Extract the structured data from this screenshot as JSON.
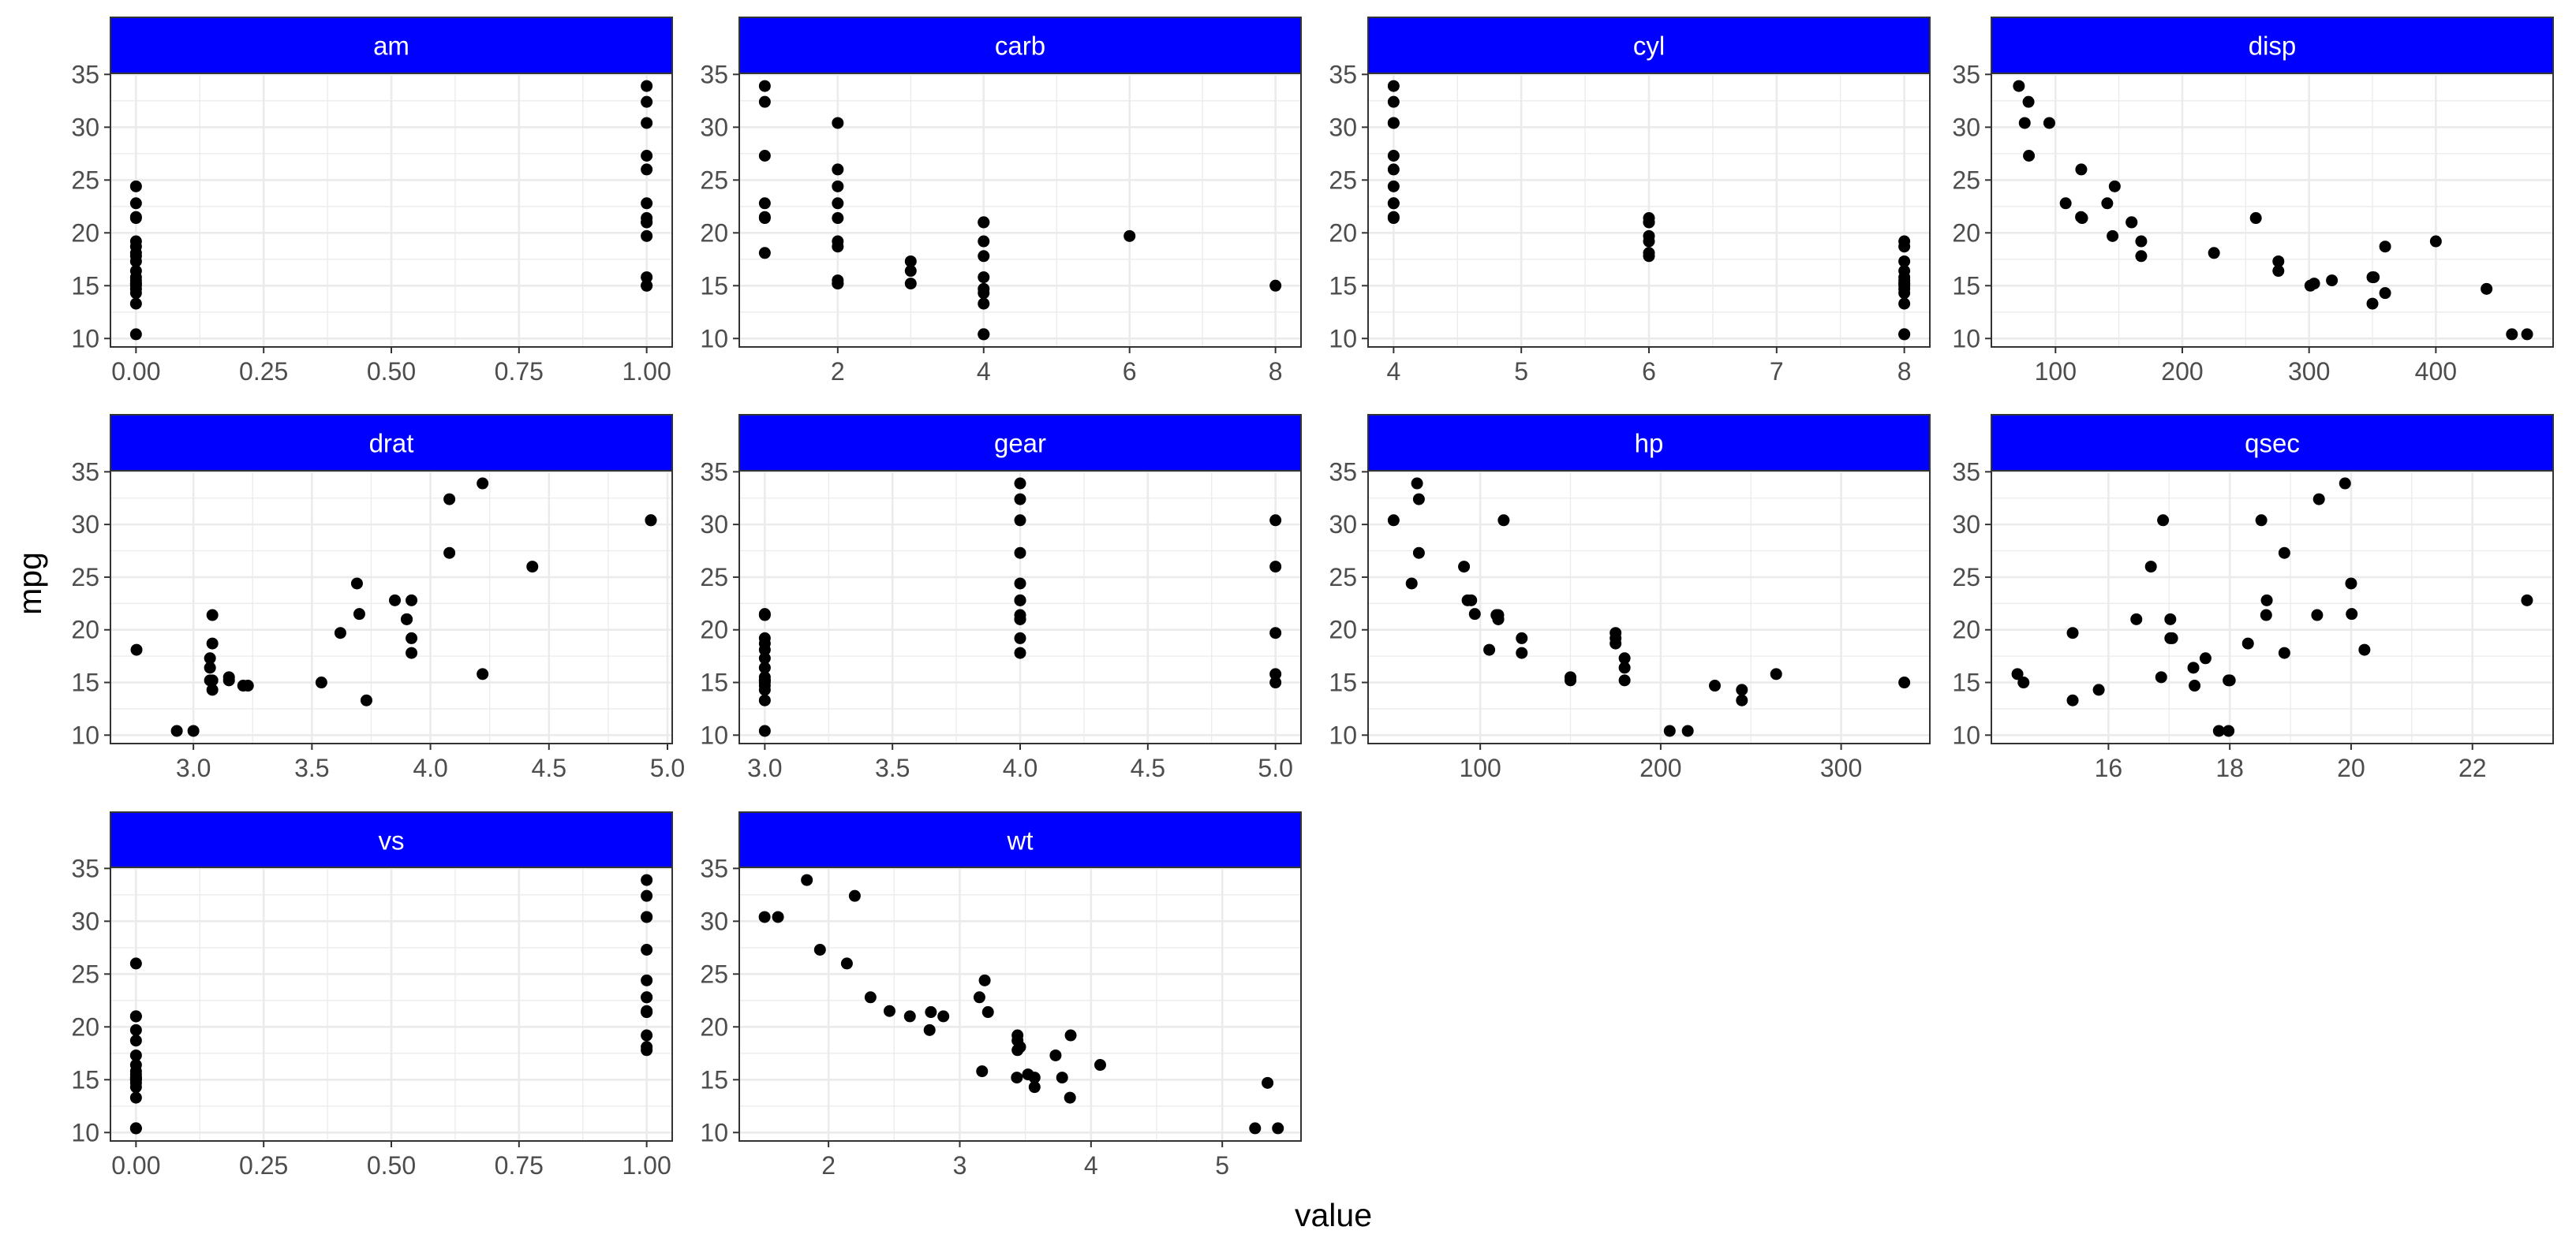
{
  "chart_data": {
    "type": "scatter",
    "xlabel": "value",
    "ylabel": "mpg",
    "colors": {
      "strip_fill": "#0000FF",
      "strip_text": "#FFFFFF",
      "points": "#000000",
      "grid": "#EBEBEB",
      "border": "#333333"
    },
    "facets": [
      {
        "name": "am",
        "xlim": [
          -0.05,
          1.05
        ],
        "xticks": [
          0,
          0.25,
          0.5,
          0.75,
          1
        ],
        "xtick_labels": [
          "0.00",
          "0.25",
          "0.50",
          "0.75",
          "1.00"
        ],
        "x": [
          0,
          0,
          0,
          0,
          0,
          0,
          0,
          0,
          0,
          0,
          0,
          0,
          0,
          0,
          0,
          0,
          0,
          0,
          0,
          1,
          1,
          1,
          1,
          1,
          1,
          1,
          1,
          1,
          1,
          1,
          1,
          1
        ],
        "y": [
          24.4,
          22.8,
          21.4,
          21.5,
          19.2,
          18.7,
          18.1,
          17.8,
          17.3,
          16.4,
          15.8,
          15.5,
          15.2,
          15.2,
          15.0,
          14.7,
          14.3,
          13.3,
          10.4,
          33.9,
          32.4,
          30.4,
          27.3,
          26.0,
          22.8,
          21.4,
          21.0,
          21.0,
          19.7,
          15.8,
          15.0,
          15.0
        ]
      },
      {
        "name": "carb",
        "xlim": [
          0.65,
          8.35
        ],
        "xticks": [
          2,
          4,
          6,
          8
        ],
        "xtick_labels": [
          "2",
          "4",
          "6",
          "8"
        ],
        "x": [
          1,
          1,
          1,
          1,
          1,
          1,
          1,
          2,
          2,
          2,
          2,
          2,
          2,
          2,
          2,
          2,
          2,
          3,
          3,
          3,
          4,
          4,
          4,
          4,
          4,
          4,
          4,
          4,
          4,
          4,
          6,
          8
        ],
        "y": [
          33.9,
          32.4,
          27.3,
          22.8,
          21.5,
          21.4,
          18.1,
          30.4,
          26.0,
          24.4,
          22.8,
          21.4,
          19.2,
          18.7,
          15.5,
          15.2,
          15.2,
          17.3,
          16.4,
          15.2,
          21.0,
          21.0,
          19.2,
          17.8,
          15.8,
          14.7,
          14.3,
          13.3,
          10.4,
          10.4,
          19.7,
          15.0
        ]
      },
      {
        "name": "cyl",
        "xlim": [
          3.8,
          8.2
        ],
        "xticks": [
          4,
          5,
          6,
          7,
          8
        ],
        "xtick_labels": [
          "4",
          "5",
          "6",
          "7",
          "8"
        ],
        "x": [
          4,
          4,
          4,
          4,
          4,
          4,
          4,
          4,
          4,
          4,
          4,
          6,
          6,
          6,
          6,
          6,
          6,
          6,
          8,
          8,
          8,
          8,
          8,
          8,
          8,
          8,
          8,
          8,
          8,
          8,
          8,
          8
        ],
        "y": [
          33.9,
          32.4,
          30.4,
          30.4,
          27.3,
          26.0,
          24.4,
          22.8,
          22.8,
          21.5,
          21.4,
          21.4,
          21.0,
          21.0,
          19.7,
          19.2,
          18.1,
          17.8,
          19.2,
          18.7,
          17.3,
          16.4,
          15.8,
          15.5,
          15.2,
          15.2,
          15.0,
          14.7,
          14.3,
          13.3,
          10.4,
          10.4
        ]
      },
      {
        "name": "disp",
        "xlim": [
          49.4,
          492.5
        ],
        "xticks": [
          100,
          200,
          300,
          400
        ],
        "xtick_labels": [
          "100",
          "200",
          "300",
          "400"
        ],
        "x": [
          71.1,
          78.7,
          75.7,
          95.1,
          79.0,
          120.3,
          146.7,
          108.0,
          140.8,
          120.1,
          121.0,
          160.0,
          160.0,
          167.6,
          225.0,
          258.0,
          167.6,
          275.8,
          360.0,
          275.8,
          304.0,
          318.0,
          301.0,
          350.0,
          400.0,
          351.0,
          440.0,
          360.0,
          350.0,
          460.0,
          472.0,
          145.0
        ],
        "y": [
          33.9,
          32.4,
          30.4,
          30.4,
          27.3,
          26.0,
          24.4,
          22.8,
          22.8,
          21.5,
          21.4,
          21.0,
          21.0,
          19.2,
          18.1,
          21.4,
          17.8,
          17.3,
          18.7,
          16.4,
          15.2,
          15.5,
          15.0,
          15.8,
          19.2,
          15.8,
          14.7,
          14.3,
          13.3,
          10.4,
          10.4,
          19.7
        ]
      },
      {
        "name": "drat",
        "xlim": [
          2.65,
          5.02
        ],
        "xticks": [
          3.0,
          3.5,
          4.0,
          4.5,
          5.0
        ],
        "xtick_labels": [
          "3.0",
          "3.5",
          "4.0",
          "4.5",
          "5.0"
        ],
        "x": [
          4.22,
          4.08,
          4.93,
          4.93,
          4.08,
          4.43,
          3.69,
          3.92,
          3.85,
          3.7,
          3.9,
          3.9,
          3.08,
          3.92,
          2.76,
          3.08,
          3.62,
          3.07,
          3.15,
          3.07,
          3.07,
          3.08,
          3.15,
          4.22,
          3.21,
          3.08,
          3.54,
          3.23,
          3.73,
          2.93,
          3.0,
          3.92
        ],
        "y": [
          33.9,
          32.4,
          30.4,
          30.4,
          27.3,
          26.0,
          24.4,
          22.8,
          22.8,
          21.5,
          21.0,
          21.0,
          21.4,
          19.2,
          18.1,
          18.7,
          19.7,
          17.3,
          15.5,
          16.4,
          15.2,
          15.2,
          15.2,
          15.8,
          14.7,
          14.3,
          15.0,
          14.7,
          13.3,
          10.4,
          10.4,
          17.8
        ]
      },
      {
        "name": "gear",
        "xlim": [
          2.9,
          5.1
        ],
        "xticks": [
          3.0,
          3.5,
          4.0,
          4.5,
          5.0
        ],
        "xtick_labels": [
          "3.0",
          "3.5",
          "4.0",
          "4.5",
          "5.0"
        ],
        "x": [
          3,
          3,
          3,
          3,
          3,
          3,
          3,
          3,
          3,
          3,
          3,
          3,
          3,
          3,
          3,
          4,
          4,
          4,
          4,
          4,
          4,
          4,
          4,
          4,
          4,
          4,
          4,
          5,
          5,
          5,
          5,
          5
        ],
        "y": [
          21.5,
          21.4,
          19.2,
          18.7,
          18.1,
          17.3,
          16.4,
          15.5,
          15.2,
          15.2,
          15.0,
          14.7,
          14.3,
          13.3,
          10.4,
          33.9,
          32.4,
          30.4,
          27.3,
          24.4,
          22.8,
          22.8,
          21.4,
          21.0,
          21.0,
          19.2,
          17.8,
          30.4,
          26.0,
          19.7,
          15.8,
          15.0
        ]
      },
      {
        "name": "hp",
        "xlim": [
          37.85,
          349.15
        ],
        "xticks": [
          100,
          200,
          300
        ],
        "xtick_labels": [
          "100",
          "200",
          "300"
        ],
        "x": [
          65,
          66,
          52,
          113,
          66,
          91,
          62,
          93,
          95,
          97,
          110,
          110,
          109,
          123,
          105,
          175,
          123,
          180,
          175,
          180,
          150,
          150,
          180,
          264,
          230,
          245,
          335,
          205,
          215,
          245,
          175,
          110
        ],
        "y": [
          33.9,
          32.4,
          30.4,
          30.4,
          27.3,
          26.0,
          24.4,
          22.8,
          22.8,
          21.5,
          21.0,
          21.0,
          21.4,
          19.2,
          18.1,
          18.7,
          17.8,
          17.3,
          19.7,
          16.4,
          15.5,
          15.2,
          15.2,
          15.8,
          14.7,
          14.3,
          15.0,
          10.4,
          10.4,
          13.3,
          19.2,
          21.4
        ]
      },
      {
        "name": "qsec",
        "xlim": [
          14.07,
          23.33
        ],
        "xticks": [
          16,
          18,
          20,
          22
        ],
        "xtick_labels": [
          "16",
          "18",
          "20",
          "22"
        ],
        "x": [
          19.9,
          19.47,
          18.52,
          16.9,
          18.9,
          16.7,
          20.0,
          18.61,
          22.9,
          20.01,
          16.46,
          17.02,
          19.44,
          18.3,
          20.22,
          17.02,
          18.9,
          17.6,
          15.41,
          17.4,
          17.98,
          16.87,
          18.0,
          14.5,
          17.42,
          15.84,
          14.6,
          17.82,
          17.98,
          15.41,
          17.05,
          18.6
        ],
        "y": [
          33.9,
          32.4,
          30.4,
          30.4,
          27.3,
          26.0,
          24.4,
          22.8,
          22.8,
          21.5,
          21.0,
          21.0,
          21.4,
          18.7,
          18.1,
          19.2,
          17.8,
          17.3,
          19.7,
          16.4,
          15.2,
          15.5,
          15.2,
          15.8,
          14.7,
          14.3,
          15.0,
          10.4,
          10.4,
          13.3,
          19.2,
          21.4
        ]
      },
      {
        "name": "vs",
        "xlim": [
          -0.05,
          1.05
        ],
        "xticks": [
          0,
          0.25,
          0.5,
          0.75,
          1
        ],
        "xtick_labels": [
          "0.00",
          "0.25",
          "0.50",
          "0.75",
          "1.00"
        ],
        "x": [
          0,
          0,
          0,
          0,
          0,
          0,
          0,
          0,
          0,
          0,
          0,
          0,
          0,
          0,
          0,
          0,
          0,
          0,
          1,
          1,
          1,
          1,
          1,
          1,
          1,
          1,
          1,
          1,
          1,
          1,
          1,
          1
        ],
        "y": [
          26.0,
          21.0,
          21.0,
          19.7,
          18.7,
          17.3,
          16.4,
          15.8,
          15.5,
          15.2,
          15.2,
          15.0,
          15.0,
          14.7,
          14.3,
          13.3,
          10.4,
          10.4,
          33.9,
          32.4,
          30.4,
          30.4,
          27.3,
          24.4,
          22.8,
          22.8,
          21.5,
          21.4,
          21.4,
          19.2,
          18.1,
          17.8
        ]
      },
      {
        "name": "wt",
        "xlim": [
          1.32,
          5.6
        ],
        "xticks": [
          2,
          3,
          4,
          5
        ],
        "xtick_labels": [
          "2",
          "3",
          "4",
          "5"
        ],
        "x": [
          1.835,
          2.2,
          1.513,
          1.615,
          1.935,
          2.14,
          3.19,
          2.32,
          3.15,
          2.465,
          2.62,
          2.875,
          2.78,
          3.215,
          3.46,
          3.44,
          3.57,
          3.73,
          2.77,
          4.07,
          3.78,
          3.52,
          3.435,
          3.17,
          3.84,
          3.845,
          3.57,
          5.25,
          5.424,
          5.345,
          3.44,
          3.44
        ],
        "y": [
          33.9,
          32.4,
          30.4,
          30.4,
          27.3,
          26.0,
          24.4,
          22.8,
          22.8,
          21.5,
          21.0,
          21.0,
          21.4,
          21.4,
          18.1,
          18.7,
          15.2,
          17.3,
          19.7,
          16.4,
          15.2,
          15.5,
          15.2,
          15.8,
          13.3,
          19.2,
          14.3,
          10.4,
          10.4,
          14.7,
          17.8,
          19.2
        ]
      }
    ],
    "ylim": [
      9.2,
      35.1
    ],
    "yticks": [
      10,
      15,
      20,
      25,
      30,
      35
    ],
    "ytick_labels": [
      "10",
      "15",
      "20",
      "25",
      "30",
      "35"
    ],
    "grid": true,
    "legend": "none"
  }
}
